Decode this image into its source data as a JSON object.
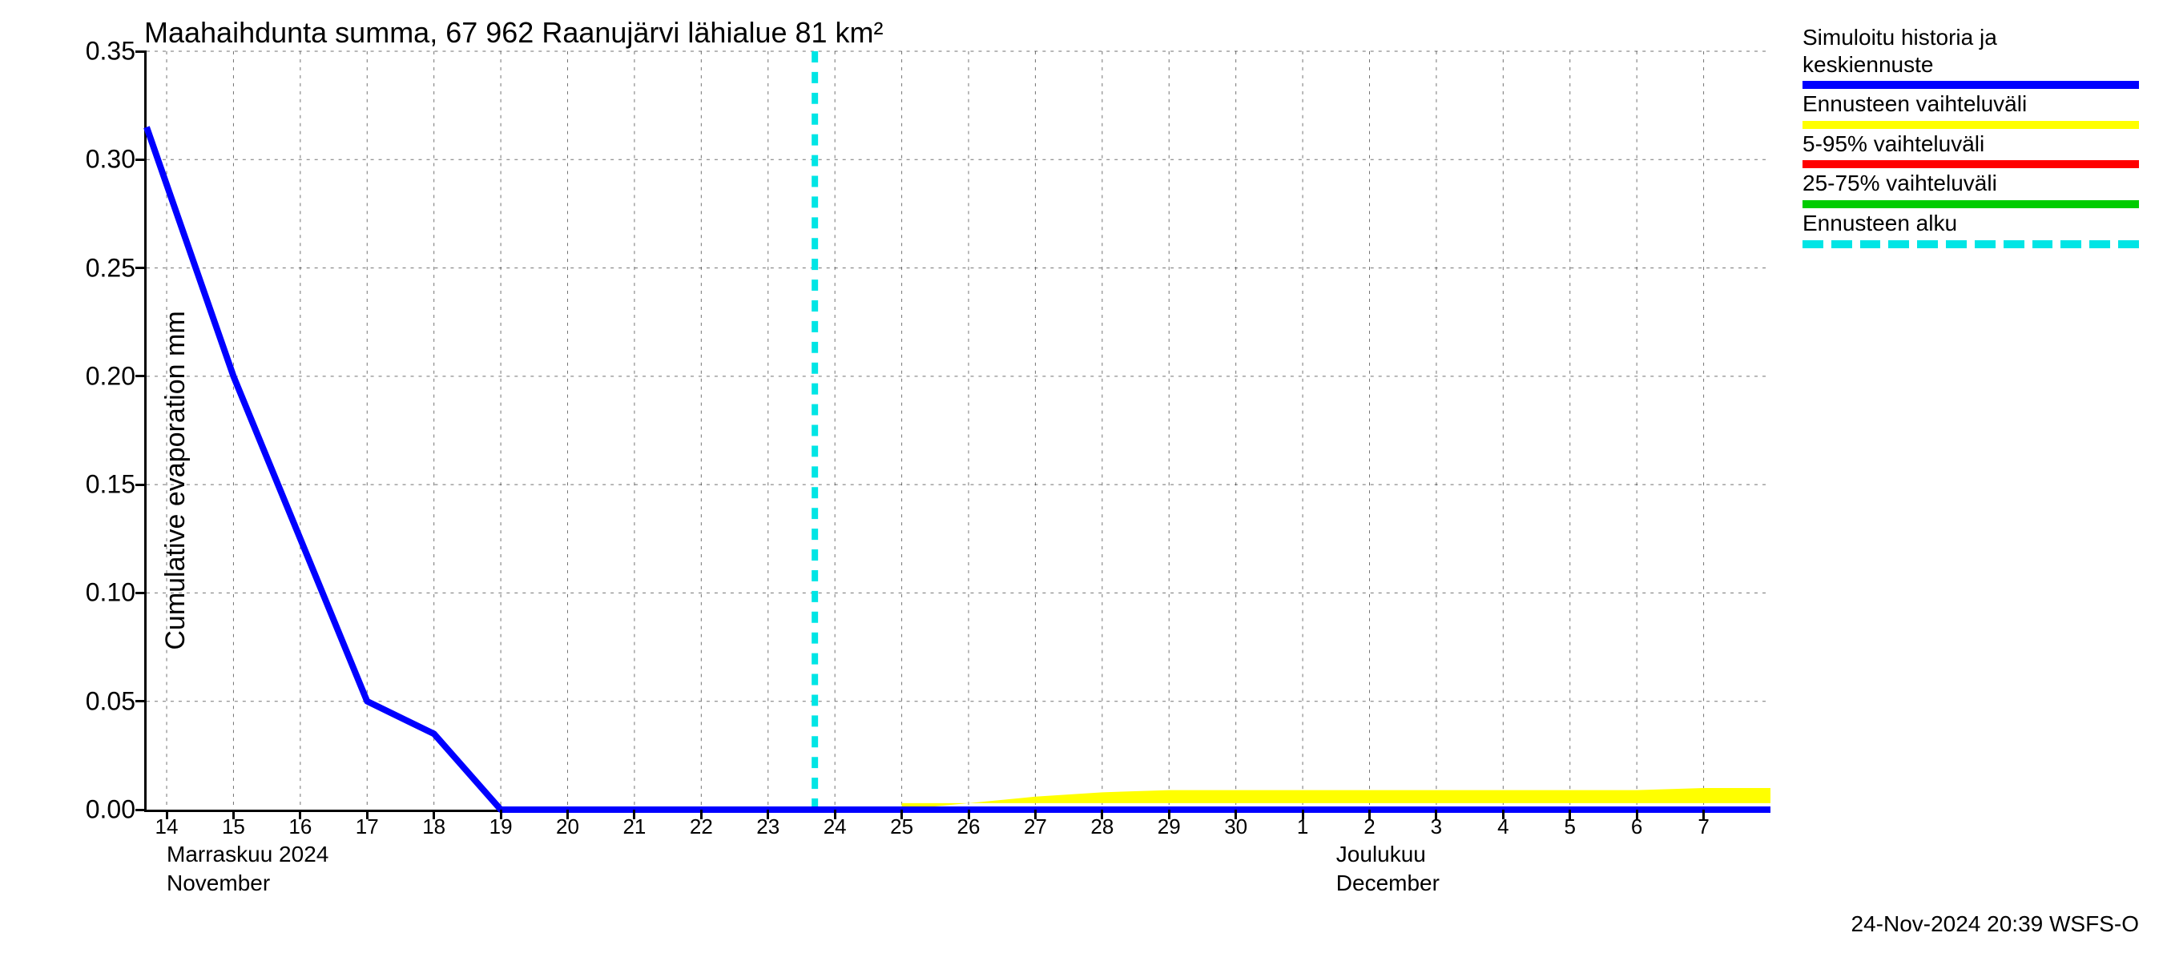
{
  "chart": {
    "type": "line",
    "title": "Maahaihdunta summa, 67 962 Raanujärvi lähialue 81 km²",
    "ylabel": "Cumulative evaporation   mm",
    "title_fontsize": 36,
    "label_fontsize": 34,
    "tick_fontsize": 32,
    "xtick_fontsize": 26,
    "background_color": "#ffffff",
    "grid_color": "#000000",
    "grid_dash": "4,6",
    "axis_color": "#000000",
    "ylim": [
      0,
      0.35
    ],
    "yticks": [
      0.0,
      0.05,
      0.1,
      0.15,
      0.2,
      0.25,
      0.3,
      0.35
    ],
    "ytick_labels": [
      "0.00",
      "0.05",
      "0.10",
      "0.15",
      "0.20",
      "0.25",
      "0.30",
      "0.35"
    ],
    "x_days": [
      "14",
      "15",
      "16",
      "17",
      "18",
      "19",
      "20",
      "21",
      "22",
      "23",
      "24",
      "25",
      "26",
      "27",
      "28",
      "29",
      "30",
      "1",
      "2",
      "3",
      "4",
      "5",
      "6",
      "7"
    ],
    "x_day_indices": [
      14,
      15,
      16,
      17,
      18,
      19,
      20,
      21,
      22,
      23,
      24,
      25,
      26,
      27,
      28,
      29,
      30,
      31,
      32,
      33,
      34,
      35,
      36,
      37
    ],
    "xlim": [
      13.7,
      38
    ],
    "month_labels": [
      {
        "i": 14,
        "top": "Marraskuu 2024",
        "sub": "November"
      },
      {
        "i": 31.5,
        "top": "Joulukuu",
        "sub": "December"
      }
    ],
    "forecast_start_x": 23.7,
    "series": {
      "main": {
        "color": "#0000ff",
        "line_width": 8,
        "points": [
          [
            13.7,
            0.315
          ],
          [
            15,
            0.2
          ],
          [
            16,
            0.125
          ],
          [
            17,
            0.05
          ],
          [
            18,
            0.035
          ],
          [
            19,
            0.0
          ],
          [
            38,
            0.0
          ]
        ]
      },
      "yellow_band": {
        "color": "#ffff00",
        "upper_points": [
          [
            25,
            0.0
          ],
          [
            26,
            0.003
          ],
          [
            27,
            0.006
          ],
          [
            28,
            0.008
          ],
          [
            29,
            0.009
          ],
          [
            30,
            0.009
          ],
          [
            31,
            0.009
          ],
          [
            32,
            0.009
          ],
          [
            33,
            0.009
          ],
          [
            34,
            0.009
          ],
          [
            35,
            0.009
          ],
          [
            36,
            0.009
          ],
          [
            37,
            0.01
          ],
          [
            38,
            0.01
          ]
        ],
        "lower_y": 0.003
      }
    },
    "legend": [
      {
        "label": "Simuloitu historia ja\nkeskiennuste",
        "color": "#0000ff",
        "style": "solid"
      },
      {
        "label": "Ennusteen vaihteluväli",
        "color": "#ffff00",
        "style": "solid"
      },
      {
        "label": "5-95% vaihteluväli",
        "color": "#ff0000",
        "style": "solid"
      },
      {
        "label": "25-75% vaihteluväli",
        "color": "#00cc00",
        "style": "solid"
      },
      {
        "label": "Ennusteen alku",
        "color": "#00e5e5",
        "style": "dash"
      }
    ],
    "vline_color": "#00e5e5",
    "vline_dash": "14,12",
    "vline_width": 8
  },
  "footer": "24-Nov-2024 20:39 WSFS-O"
}
